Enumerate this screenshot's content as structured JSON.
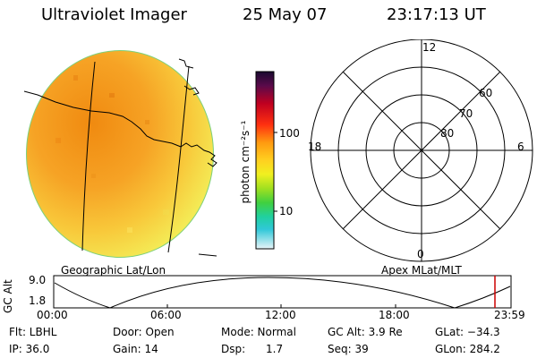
{
  "header": {
    "instrument": "Ultraviolet Imager",
    "date": "25 May 07",
    "time": "23:17:13 UT"
  },
  "colorbar": {
    "unit_label": "photon cm⁻²s⁻¹",
    "tick_labels": [
      "100",
      "10"
    ]
  },
  "panels": {
    "left_label": "Geographic Lat/Lon",
    "right_label": "Apex MLat/MLT"
  },
  "polar_plot": {
    "mlt_labels": [
      "12",
      "18",
      "6",
      "0"
    ],
    "mlat_labels": [
      "60",
      "70",
      "80"
    ]
  },
  "altitude_plot": {
    "ylabel": "GC Alt",
    "y_ticks": [
      "9.0",
      "1.8"
    ],
    "x_ticks": [
      "00:00",
      "06:00",
      "12:00",
      "18:00",
      "23:59"
    ],
    "current_marker_color": "#cc0000"
  },
  "info": {
    "row1": {
      "flt": "Flt: LBHL",
      "door": "Door: Open",
      "mode": "Mode: Normal",
      "gc_alt": "GC Alt: 3.9 Re",
      "glat": "GLat: −34.3"
    },
    "row2": {
      "ip": "IP: 36.0",
      "gain": "Gain: 14",
      "dsp": "Dsp:      1.7",
      "seq": "Seq: 39",
      "glon": "GLon: 284.2"
    }
  }
}
